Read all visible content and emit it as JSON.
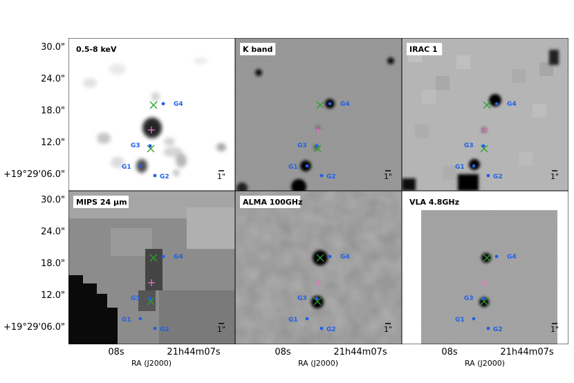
{
  "figure": {
    "y_ticks": [
      "30.0\"",
      "24.0\"",
      "18.0\"",
      "12.0\"",
      "+19°29'06.0\""
    ],
    "x_ticks": [
      "08s",
      "21h44m07s"
    ],
    "x_axis_label": "RA (J2000)",
    "scale_bar_label": "1\"",
    "galaxy_labels": [
      "G1",
      "G2",
      "G3",
      "G4"
    ],
    "marker_colors": {
      "galaxy": "#1f5fe6",
      "cross": "#2ca02c",
      "plus": "#e377c2"
    }
  },
  "panels": [
    {
      "title": "0.5-8 keV",
      "style": "xray"
    },
    {
      "title": "K band",
      "style": "kband"
    },
    {
      "title": "IRAC 1",
      "style": "irac"
    },
    {
      "title": "MIPS 24 μm",
      "style": "mips"
    },
    {
      "title": "ALMA 100GHz",
      "style": "alma"
    },
    {
      "title": "VLA 4.8GHz",
      "style": "vla"
    }
  ]
}
